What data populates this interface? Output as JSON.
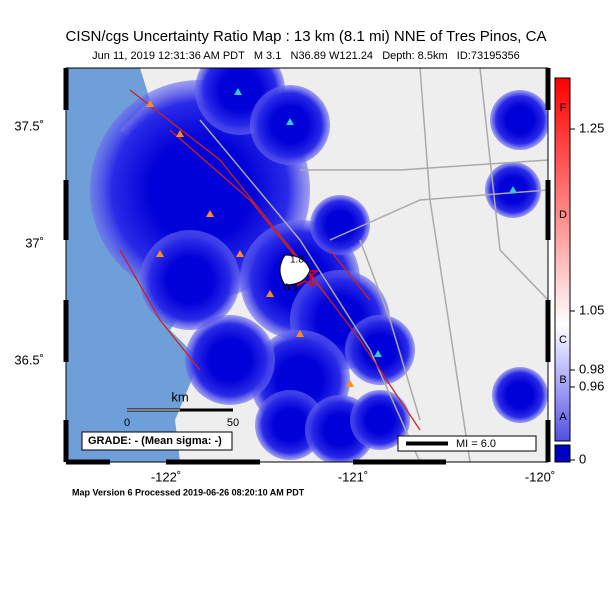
{
  "header": {
    "title": "CISN/cgs Uncertainty Ratio Map : 13 km (8.1 mi) NNE of Tres Pinos, CA",
    "subtitle": "Jun 11, 2019 12:31:36 AM PDT   M 3.1   N36.89 W121.24   Depth: 8.5km   ID:73195356"
  },
  "map": {
    "lat_labels": [
      "37.5˚",
      "37˚",
      "36.5˚"
    ],
    "lon_labels": [
      "-122˚",
      "-121˚",
      "-120˚"
    ],
    "contour_labels": [
      "1.8",
      "0.9"
    ],
    "scale": {
      "title": "km",
      "start": "0",
      "end": "50"
    },
    "grade": "GRADE: - (Mean sigma: -)",
    "mi_legend": "MI = 6.0"
  },
  "colorbar": {
    "letters": [
      "F",
      "D",
      "C",
      "B",
      "A"
    ],
    "values": [
      "1.25",
      "1.05",
      "0.98",
      "0.96",
      "0"
    ]
  },
  "footer": "Map Version 6 Processed 2019-06-26 08:20:10 AM PDT"
}
